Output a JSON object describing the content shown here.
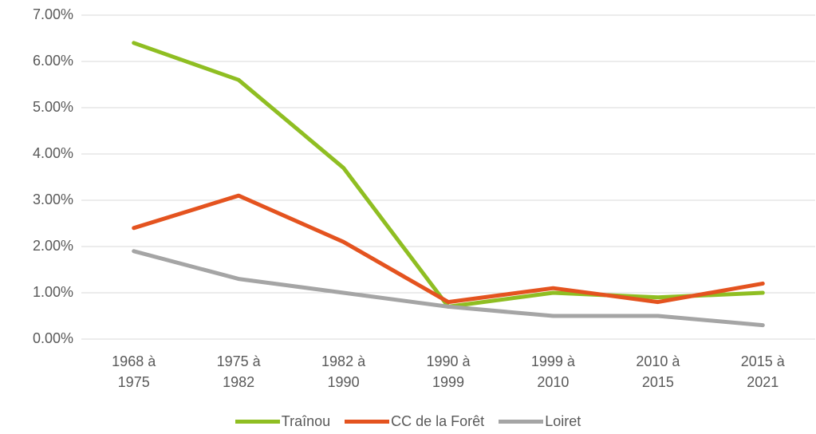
{
  "chart_data": {
    "type": "line",
    "categories": [
      "1968 à 1975",
      "1975 à 1982",
      "1982 à 1990",
      "1990 à 1999",
      "1999 à 2010",
      "2010 à 2015",
      "2015 à 2021"
    ],
    "series": [
      {
        "name": "Traînou",
        "color": "#8fbe22",
        "values": [
          6.4,
          5.6,
          3.7,
          0.7,
          1.0,
          0.9,
          1.0
        ]
      },
      {
        "name": "CC de la Forêt",
        "color": "#e4531f",
        "values": [
          2.4,
          3.1,
          2.1,
          0.8,
          1.1,
          0.8,
          1.2
        ]
      },
      {
        "name": "Loiret",
        "color": "#a5a5a5",
        "values": [
          1.9,
          1.3,
          1.0,
          0.7,
          0.5,
          0.5,
          0.3
        ]
      }
    ],
    "ylim": [
      0,
      7
    ],
    "yticks": [
      {
        "value": 0,
        "label": "0.00%"
      },
      {
        "value": 1,
        "label": "1.00%"
      },
      {
        "value": 2,
        "label": "2.00%"
      },
      {
        "value": 3,
        "label": "3.00%"
      },
      {
        "value": 4,
        "label": "4.00%"
      },
      {
        "value": 5,
        "label": "5.00%"
      },
      {
        "value": 6,
        "label": "6.00%"
      },
      {
        "value": 7,
        "label": "7.00%"
      }
    ],
    "grid": true,
    "legend": "bottom"
  }
}
